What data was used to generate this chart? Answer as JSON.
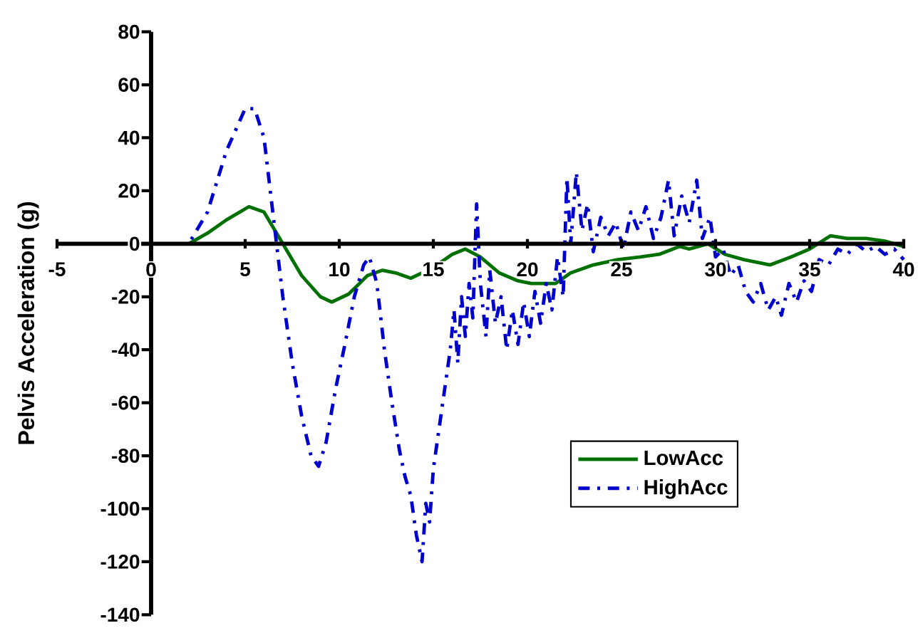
{
  "chart_data": {
    "type": "line",
    "ylabel": "Pelvis Acceleration (g)",
    "xlim": [
      -5,
      40
    ],
    "ylim": [
      -140,
      80
    ],
    "xticks": [
      -5,
      0,
      5,
      10,
      15,
      20,
      25,
      30,
      35,
      40
    ],
    "yticks": [
      -140,
      -120,
      -100,
      -80,
      -60,
      -40,
      -20,
      0,
      20,
      40,
      60,
      80
    ],
    "legend": "bottom right",
    "series": [
      {
        "name": "LowAcc",
        "color": "#007000",
        "line_style": "solid",
        "x": [
          -5,
          0,
          2,
          3,
          4,
          5.2,
          6,
          7,
          8,
          9,
          9.6,
          10.5,
          11.5,
          12.3,
          13,
          13.8,
          15,
          16,
          16.7,
          17.5,
          18.5,
          19.5,
          20.2,
          21.5,
          22.3,
          23.5,
          24.8,
          26,
          27,
          28.1,
          28.6,
          29.6,
          30.5,
          31.5,
          32.9,
          34,
          35,
          36.1,
          37,
          38,
          39,
          40
        ],
        "values": [
          0,
          0,
          0,
          4,
          9,
          14,
          12,
          0,
          -12,
          -20,
          -22,
          -19,
          -12,
          -10,
          -11,
          -13,
          -9,
          -4,
          -2,
          -5,
          -11,
          -14,
          -15,
          -15,
          -11,
          -8,
          -6,
          -5,
          -4,
          -1,
          -2,
          0,
          -4,
          -6,
          -8,
          -5,
          -2,
          3,
          2,
          2,
          1,
          -1
        ]
      },
      {
        "name": "HighAcc",
        "color": "#0000cc",
        "line_style": "dashdot",
        "x": [
          -5,
          0,
          2,
          3,
          4,
          5,
          5.5,
          6,
          6.5,
          7,
          7.5,
          8,
          8.5,
          8.9,
          9.3,
          9.8,
          10.3,
          10.8,
          11.3,
          11.6,
          12,
          12.4,
          12.8,
          13.2,
          13.5,
          13.8,
          14.1,
          14.4,
          14.6,
          14.8,
          15,
          15.3,
          15.6,
          15.9,
          16.1,
          16.3,
          16.5,
          16.7,
          16.9,
          17.1,
          17.3,
          17.5,
          17.8,
          18,
          18.3,
          18.6,
          18.9,
          19.2,
          19.5,
          19.8,
          20.1,
          20.4,
          20.7,
          21,
          21.3,
          21.6,
          21.9,
          22.1,
          22.3,
          22.6,
          22.9,
          23.2,
          23.5,
          23.9,
          24.3,
          24.7,
          25.1,
          25.5,
          25.9,
          26.3,
          26.7,
          27.1,
          27.5,
          27.8,
          28.2,
          28.6,
          29,
          29.3,
          29.7,
          30,
          30.4,
          30.8,
          31.2,
          31.6,
          32,
          32.4,
          32.8,
          33.2,
          33.5,
          33.9,
          34.3,
          34.7,
          35.1,
          35.5,
          36,
          36.5,
          37,
          37.5,
          38,
          38.5,
          39,
          39.5,
          40
        ],
        "values": [
          0,
          0,
          0,
          12,
          35,
          51,
          51,
          40,
          10,
          -20,
          -45,
          -65,
          -80,
          -84,
          -75,
          -55,
          -38,
          -20,
          -8,
          -5,
          -15,
          -40,
          -60,
          -78,
          -88,
          -95,
          -110,
          -120,
          -98,
          -105,
          -85,
          -70,
          -55,
          -40,
          -25,
          -45,
          -20,
          -35,
          -15,
          -28,
          15,
          -15,
          -35,
          -10,
          -30,
          -20,
          -40,
          -25,
          -38,
          -22,
          -35,
          -18,
          -30,
          -15,
          -25,
          -5,
          -20,
          25,
          0,
          27,
          5,
          15,
          -3,
          10,
          3,
          8,
          -2,
          12,
          5,
          14,
          2,
          10,
          24,
          3,
          18,
          8,
          24,
          2,
          10,
          -5,
          -2,
          -12,
          -8,
          -18,
          -22,
          -15,
          -25,
          -20,
          -27,
          -15,
          -22,
          -14,
          -18,
          -6,
          -8,
          -2,
          -4,
          0,
          -3,
          -1,
          -4,
          -2,
          -6
        ]
      }
    ]
  }
}
